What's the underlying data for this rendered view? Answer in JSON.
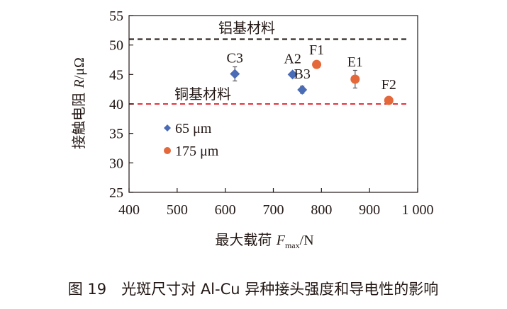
{
  "chart_data": {
    "type": "scatter",
    "title": "",
    "xlabel": "最大载荷 F_max/N",
    "xlabel_parts": {
      "text": "最大载荷 ",
      "symbol": "F",
      "subscript": "max",
      "unit": "/N"
    },
    "ylabel": "接触电阻 R/μΩ",
    "ylabel_parts": {
      "text": "接触电阻 ",
      "symbol": "R",
      "unit": "/μΩ"
    },
    "xlim": [
      400,
      1000
    ],
    "ylim": [
      25,
      55
    ],
    "x_ticks": [
      400,
      500,
      600,
      700,
      800,
      900,
      1000
    ],
    "x_tick_labels": [
      "400",
      "500",
      "600",
      "700",
      "800",
      "900",
      "1 000"
    ],
    "y_ticks": [
      25,
      30,
      35,
      40,
      45,
      50,
      55
    ],
    "y_tick_labels": [
      "25",
      "30",
      "35",
      "40",
      "45",
      "50",
      "55"
    ],
    "grid": false,
    "legend_position": "bottom-left",
    "series": [
      {
        "name": "65 μm",
        "marker": "diamond",
        "color": "#4a6bb5",
        "points": [
          {
            "label": "C3",
            "x": 620,
            "y": 45.1,
            "err": 1.2
          },
          {
            "label": "A2",
            "x": 740,
            "y": 45.0,
            "err": 0
          },
          {
            "label": "B3",
            "x": 760,
            "y": 42.4,
            "err": 0.6
          }
        ]
      },
      {
        "name": "175 μm",
        "marker": "circle",
        "color": "#e4683a",
        "points": [
          {
            "label": "F1",
            "x": 790,
            "y": 46.7,
            "err": 0
          },
          {
            "label": "E1",
            "x": 870,
            "y": 44.2,
            "err": 1.5
          },
          {
            "label": "F2",
            "x": 940,
            "y": 40.6,
            "err": 0
          }
        ]
      }
    ],
    "reference_lines": [
      {
        "label": "铝基材料",
        "y": 51,
        "color": "#231815",
        "style": "dashed"
      },
      {
        "label": "铜基材料",
        "y": 40,
        "color": "#e8303a",
        "style": "dashed"
      }
    ]
  },
  "caption": "图 19　光斑尺寸对 Al-Cu 异种接头强度和导电性的影响"
}
